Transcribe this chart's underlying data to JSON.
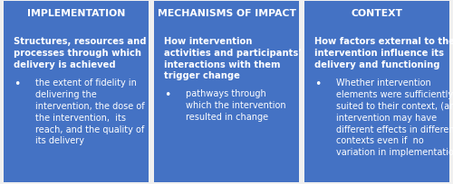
{
  "background_color": "#f0f0f0",
  "box_color": "#4472C4",
  "text_color": "#ffffff",
  "border_color": "#cccccc",
  "boxes": [
    {
      "title": "IMPLEMENTATION",
      "subtitle": "Structures, resources and\nprocesses through which\ndelivery is achieved",
      "bullets": [
        "the extent of fidelity in\ndelivering the\nintervention, the dose of\nthe intervention,  its\nreach, and the quality of\nits delivery"
      ]
    },
    {
      "title": "MECHANISMS OF IMPACT",
      "subtitle": "How intervention\nactivities and participants’\ninteractions with them\ntrigger change",
      "bullets": [
        "pathways through\nwhich the intervention\nresulted in change"
      ]
    },
    {
      "title": "CONTEXT",
      "subtitle": "How factors external to the\nintervention influence its\ndelivery and functioning",
      "bullets": [
        "Whether intervention\nelements were sufficiently\nsuited to their context, (an\nintervention may have\ndifferent effects in different\ncontexts even if  no\nvariation in implementation)"
      ]
    }
  ],
  "title_fontsize": 7.8,
  "subtitle_fontsize": 7.2,
  "bullet_fontsize": 7.0,
  "figsize": [
    5.0,
    2.05
  ],
  "dpi": 100
}
